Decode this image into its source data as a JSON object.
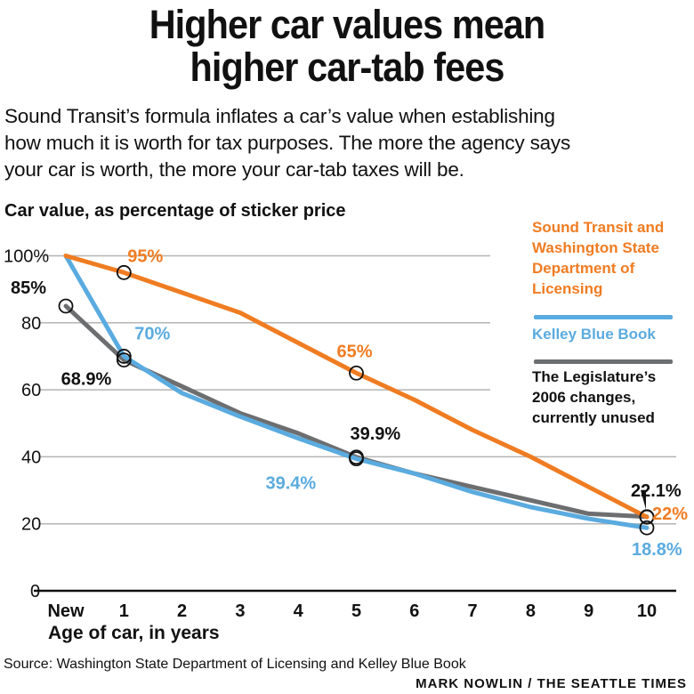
{
  "header": {
    "title_lines": [
      "Higher car values mean",
      "higher car-tab fees"
    ],
    "subtitle_lines": [
      "Sound Transit’s formula inflates a car’s value when establishing",
      "how much it is worth for tax purposes. The more the agency says",
      "your car is worth, the more your car-tab taxes will be."
    ]
  },
  "footer": {
    "source": "Source: Washington State Department of Licensing and Kelley Blue Book",
    "credit": "MARK NOWLIN / THE SEATTLE TIMES"
  },
  "chart_data": {
    "type": "line",
    "title": "Higher car values mean higher car-tab fees",
    "ylabel": "Car value, as percentage of sticker price",
    "xlabel": "Age of car, in years",
    "categories": [
      "New",
      "1",
      "2",
      "3",
      "4",
      "5",
      "6",
      "7",
      "8",
      "9",
      "10"
    ],
    "yticks": [
      "0",
      "20",
      "40",
      "60",
      "80",
      "100%"
    ],
    "ylim": [
      0,
      100
    ],
    "grid": true,
    "legend_placement": "right",
    "series": [
      {
        "name": "Sound Transit and Washington State Department of Licensing",
        "legend_lines": [
          "Sound Transit and",
          "Washington State",
          "Department of",
          "Licensing"
        ],
        "color": "#f07c22",
        "values": [
          100,
          95,
          89,
          83,
          74,
          65,
          57,
          48,
          40,
          31,
          22
        ]
      },
      {
        "name": "Kelley Blue Book",
        "legend_lines": [
          "Kelley Blue Book"
        ],
        "color": "#5aabdf",
        "values": [
          100,
          70,
          59,
          52,
          45.5,
          39.4,
          35,
          29.5,
          25,
          21.5,
          18.8
        ]
      },
      {
        "name": "The Legislature’s 2006 changes, currently unused",
        "legend_lines": [
          "The Legislature’s",
          "2006 changes,",
          "currently unused"
        ],
        "color": "#6d6e70",
        "values": [
          85,
          68.9,
          61,
          53,
          47,
          39.9,
          35,
          31,
          27,
          23,
          22.1
        ]
      }
    ],
    "annotations": [
      {
        "series": 0,
        "x": 1,
        "label": "95%"
      },
      {
        "series": 2,
        "x": 0,
        "label": "85%"
      },
      {
        "series": 1,
        "x": 1,
        "label": "70%"
      },
      {
        "series": 2,
        "x": 1,
        "label": "68.9%"
      },
      {
        "series": 0,
        "x": 5,
        "label": "65%"
      },
      {
        "series": 2,
        "x": 5,
        "label": "39.9%"
      },
      {
        "series": 1,
        "x": 5,
        "label": "39.4%"
      },
      {
        "series": 2,
        "x": 10,
        "label": "22.1%"
      },
      {
        "series": 0,
        "x": 10,
        "label": "22%"
      },
      {
        "series": 1,
        "x": 10,
        "label": "18.8%"
      }
    ]
  }
}
